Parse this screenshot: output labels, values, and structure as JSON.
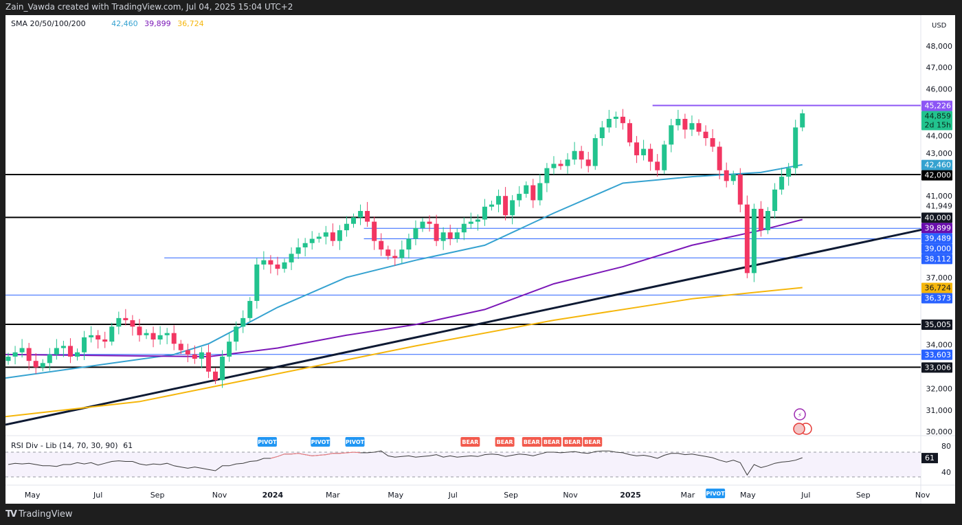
{
  "header": {
    "attribution": "Zain_Vawda created with TradingView.com, Jul 04, 2025 15:04 UTC+2"
  },
  "legend": {
    "name": "SMA 20/50/100/200",
    "v1": "42,460",
    "v2": "39,899",
    "v3": "36,724"
  },
  "rsi_legend": {
    "name": "RSI Div - Lib (14, 70, 30, 90)",
    "value": "61"
  },
  "currency": "USD",
  "footer": {
    "brand": "TradingView"
  },
  "colors": {
    "up": "#22c38e",
    "down": "#f23662",
    "sma1": "#35a2d0",
    "sma2": "#7b17b7",
    "sma3": "#f5b60b",
    "trend": "#0e1a33",
    "hline_blue": "#2962ff",
    "purple_line": "#8c55f5"
  },
  "price_axis": {
    "ticks": [
      48000,
      47000,
      46000,
      45000,
      44000,
      43000,
      41000,
      37000,
      34000,
      32000,
      31000,
      30000
    ],
    "tick_labels": [
      "48,000",
      "47,000",
      "46,000",
      "",
      "44,000",
      "43,000",
      "41,000",
      "37,000",
      "34,000",
      "32,000",
      "31,000",
      "30,000"
    ],
    "extra_labels": [
      {
        "value": 41949,
        "text": "41,949"
      }
    ],
    "badges": [
      {
        "value": 45226,
        "text": "45,226",
        "color": "#8c55f5",
        "fg": "#fff"
      },
      {
        "value": 44859,
        "text": "44,859",
        "sub": "2d 15h",
        "color": "#22c38e",
        "fg": "#0b2a1e"
      },
      {
        "value": 42460,
        "text": "42,460",
        "color": "#35a2d0",
        "fg": "#fff"
      },
      {
        "value": 42000,
        "text": "42,000",
        "color": "#000000",
        "fg": "#fff"
      },
      {
        "value": 40000,
        "text": "40,000",
        "color": "#131722",
        "fg": "#fff"
      },
      {
        "value": 39899,
        "text": "39,899",
        "color": "#6a0dad",
        "fg": "#fff"
      },
      {
        "value": 39489,
        "text": "39,489",
        "color": "#2962ff",
        "fg": "#fff"
      },
      {
        "value": 39000,
        "text": "39,000",
        "color": "#2962ff",
        "fg": "#fff"
      },
      {
        "value": 38112,
        "text": "38,112",
        "color": "#2962ff",
        "fg": "#fff"
      },
      {
        "value": 36724,
        "text": "36,724",
        "color": "#f5b60b",
        "fg": "#131722"
      },
      {
        "value": 36373,
        "text": "36,373",
        "color": "#2962ff",
        "fg": "#fff"
      },
      {
        "value": 35005,
        "text": "35,005",
        "color": "#131722",
        "fg": "#fff"
      },
      {
        "value": 33603,
        "text": "33,603",
        "color": "#2962ff",
        "fg": "#fff"
      },
      {
        "value": 33006,
        "text": "33,006",
        "color": "#131722",
        "fg": "#fff"
      }
    ]
  },
  "time_axis": [
    {
      "label": "May",
      "w": 3.5
    },
    {
      "label": "Jul",
      "w": 13
    },
    {
      "label": "Sep",
      "w": 21.6
    },
    {
      "label": "Nov",
      "w": 30.6
    },
    {
      "label": "2024",
      "w": 38.3,
      "bold": true
    },
    {
      "label": "Mar",
      "w": 47
    },
    {
      "label": "May",
      "w": 56.1
    },
    {
      "label": "Jul",
      "w": 64.4
    },
    {
      "label": "Sep",
      "w": 72.8
    },
    {
      "label": "Nov",
      "w": 81.4
    },
    {
      "label": "2025",
      "w": 90.1,
      "bold": true
    },
    {
      "label": "Mar",
      "w": 98.4
    },
    {
      "label": "May",
      "w": 107.1
    },
    {
      "label": "Jul",
      "w": 115.5
    },
    {
      "label": "Sep",
      "w": 123.8
    },
    {
      "label": "Nov",
      "w": 132.4
    }
  ],
  "chart_data": {
    "type": "candlestick",
    "interval": "weekly",
    "closes": [
      33500,
      33700,
      33900,
      33300,
      33000,
      33200,
      33600,
      33900,
      34000,
      33500,
      33700,
      34400,
      34500,
      34300,
      34200,
      34900,
      35300,
      35200,
      34900,
      34500,
      34600,
      34300,
      34500,
      34600,
      34100,
      33800,
      33600,
      33400,
      33700,
      32800,
      32400,
      33500,
      34200,
      34900,
      35300,
      36100,
      37800,
      38000,
      37800,
      37600,
      37900,
      38300,
      38600,
      38800,
      39000,
      39100,
      39300,
      38900,
      39400,
      39700,
      40000,
      40300,
      39800,
      38900,
      38500,
      38200,
      38100,
      38500,
      39000,
      39500,
      39800,
      39700,
      38900,
      39300,
      39000,
      39300,
      39700,
      39800,
      39900,
      40500,
      40600,
      41000,
      40100,
      40800,
      41100,
      41500,
      40800,
      41600,
      42300,
      42500,
      42400,
      42700,
      43100,
      42700,
      42400,
      43700,
      44200,
      44600,
      44700,
      44400,
      43500,
      42900,
      43200,
      42600,
      42200,
      43400,
      44300,
      44600,
      44100,
      44400,
      44000,
      43700,
      43300,
      42200,
      41700,
      42000,
      40600,
      37400,
      40400,
      39400,
      40300,
      41300,
      41900,
      42300,
      44200,
      44859
    ],
    "first_open": 33300,
    "sma_series": [
      {
        "name": "SMA 20",
        "value": "42,460",
        "points": [
          [
            -0.4,
            32500
          ],
          [
            24,
            33600
          ],
          [
            29,
            34100
          ],
          [
            39,
            35800
          ],
          [
            49,
            37200
          ],
          [
            59,
            38000
          ],
          [
            69,
            38700
          ],
          [
            79,
            40200
          ],
          [
            89,
            41600
          ],
          [
            99,
            41900
          ],
          [
            104,
            42000
          ],
          [
            109,
            42100
          ],
          [
            115,
            42460
          ]
        ]
      },
      {
        "name": "SMA 50",
        "value": "39,899",
        "points": [
          [
            -0.4,
            33600
          ],
          [
            29,
            33500
          ],
          [
            39,
            33900
          ],
          [
            49,
            34500
          ],
          [
            59,
            35000
          ],
          [
            69,
            35700
          ],
          [
            79,
            36900
          ],
          [
            89,
            37700
          ],
          [
            99,
            38700
          ],
          [
            109,
            39400
          ],
          [
            115,
            39899
          ]
        ]
      },
      {
        "name": "SMA 100",
        "value": "36,724",
        "points": [
          [
            -0.4,
            30700
          ],
          [
            19,
            31400
          ],
          [
            39,
            32700
          ],
          [
            59,
            34000
          ],
          [
            79,
            35200
          ],
          [
            99,
            36200
          ],
          [
            115,
            36724
          ]
        ]
      }
    ],
    "trendline": [
      [
        -0.4,
        30320
      ],
      [
        132.8,
        39460
      ]
    ],
    "levels": [
      {
        "value": 42000,
        "color": "#000000",
        "from": -0.4,
        "width": 2
      },
      {
        "value": 40000,
        "color": "#000000",
        "from": -0.4,
        "width": 2
      },
      {
        "value": 35005,
        "color": "#000000",
        "from": -0.4,
        "width": 2
      },
      {
        "value": 33006,
        "color": "#000000",
        "from": -0.4,
        "width": 2
      },
      {
        "value": 36373,
        "color": "#2962ff",
        "from": -0.4,
        "width": 1
      },
      {
        "value": 33603,
        "color": "#2962ff",
        "from": -0.4,
        "width": 1
      },
      {
        "value": 38112,
        "color": "#2962ff",
        "from": 22.6,
        "width": 1
      },
      {
        "value": 39489,
        "color": "#2962ff",
        "from": 51.5,
        "width": 1
      },
      {
        "value": 39000,
        "color": "#2962ff",
        "from": 51.5,
        "width": 1
      },
      {
        "value": 45226,
        "color": "#8c55f5",
        "from": 93.3,
        "width": 2
      }
    ],
    "rsi": {
      "upper": 70,
      "lower": 30,
      "value": 61,
      "axis_labels": [
        "80",
        "40"
      ],
      "values": [
        50,
        52,
        51,
        52,
        50,
        48,
        48,
        47,
        50,
        50,
        53,
        51,
        53,
        49,
        52,
        55,
        56,
        55,
        55,
        51,
        49,
        51,
        50,
        52,
        48,
        46,
        44,
        46,
        44,
        42,
        40,
        48,
        48,
        51,
        52,
        55,
        56,
        60,
        60,
        63,
        67,
        67,
        68,
        66,
        64,
        65,
        66,
        68,
        68,
        69,
        70,
        69,
        69,
        70,
        72,
        64,
        62,
        63,
        64,
        62,
        63,
        64,
        66,
        62,
        64,
        62,
        63,
        64,
        63,
        66,
        67,
        66,
        63,
        65,
        67,
        66,
        64,
        67,
        70,
        70,
        69,
        70,
        71,
        69,
        68,
        71,
        72,
        72,
        70,
        69,
        66,
        64,
        65,
        63,
        60,
        65,
        68,
        68,
        66,
        67,
        65,
        63,
        61,
        57,
        54,
        57,
        53,
        33,
        50,
        45,
        48,
        52,
        54,
        55,
        57,
        61
      ],
      "signals": [
        {
          "label": "PIVOT",
          "i": 37.5,
          "pos": "top"
        },
        {
          "label": "PIVOT",
          "i": 45.2,
          "pos": "top"
        },
        {
          "label": "PIVOT",
          "i": 50.2,
          "pos": "top"
        },
        {
          "label": "BEAR",
          "i": 66.9,
          "pos": "top"
        },
        {
          "label": "BEAR",
          "i": 71.9,
          "pos": "top"
        },
        {
          "label": "BEAR",
          "i": 75.8,
          "pos": "top"
        },
        {
          "label": "BEAR",
          "i": 78.7,
          "pos": "top"
        },
        {
          "label": "BEAR",
          "i": 81.7,
          "pos": "top"
        },
        {
          "label": "BEAR",
          "i": 84.6,
          "pos": "top"
        },
        {
          "label": "PIVOT",
          "i": 102.4,
          "pos": "bottom"
        }
      ]
    }
  }
}
